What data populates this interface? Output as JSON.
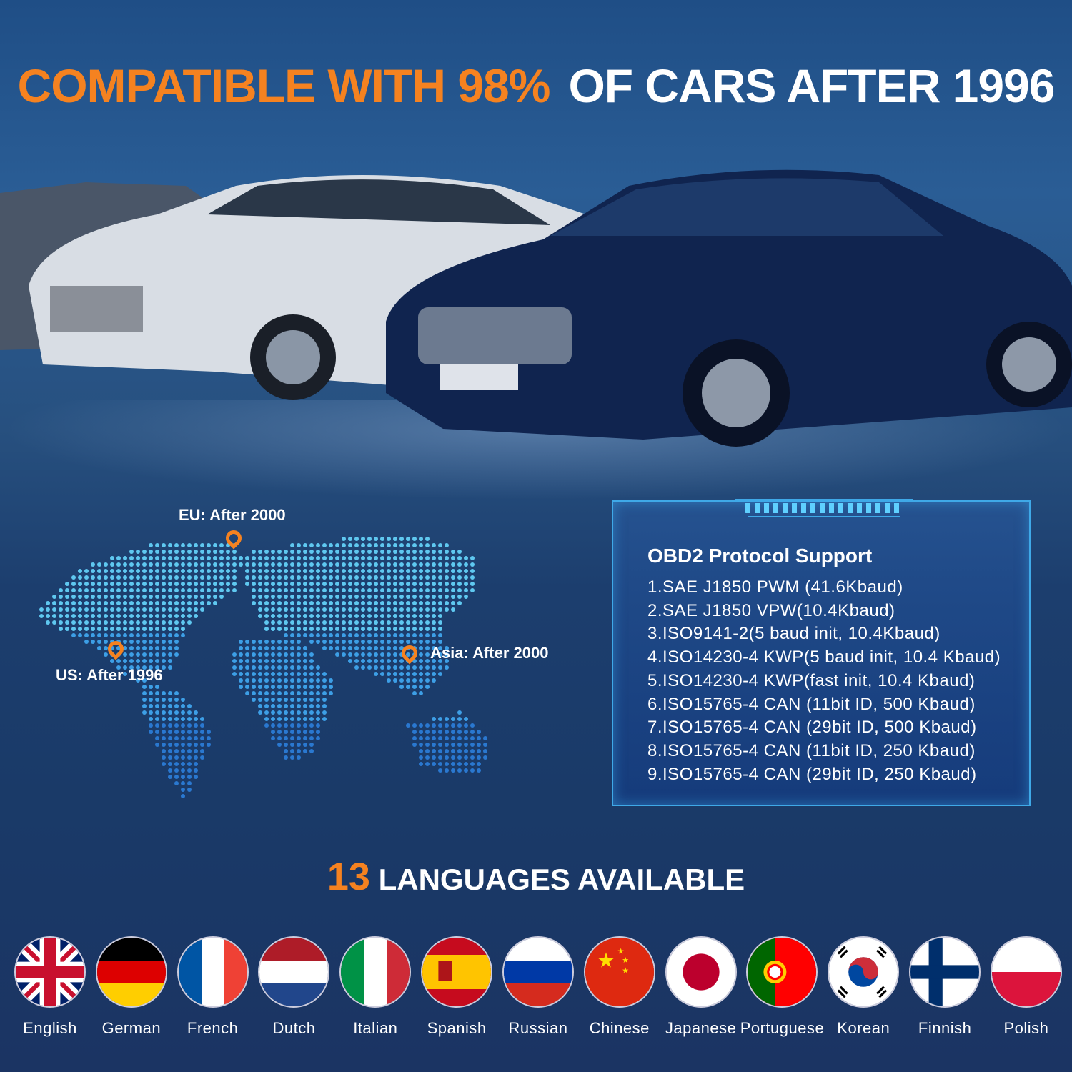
{
  "headline": {
    "orange": "COMPATIBLE WITH 98%",
    "white": "OF CARS AFTER 1996"
  },
  "map": {
    "eu": "EU: After 2000",
    "us": "US: After 1996",
    "asia": "Asia: After 2000"
  },
  "protocols": {
    "title": "OBD2 Protocol Support",
    "items": [
      "1.SAE J1850 PWM (41.6Kbaud)",
      "2.SAE J1850 VPW(10.4Kbaud)",
      "3.ISO9141-2(5 baud init, 10.4Kbaud)",
      "4.ISO14230-4 KWP(5 baud init, 10.4 Kbaud)",
      "5.ISO14230-4 KWP(fast init, 10.4 Kbaud)",
      "6.ISO15765-4 CAN (11bit ID, 500 Kbaud)",
      "7.ISO15765-4 CAN (29bit ID, 500 Kbaud)",
      "8.ISO15765-4 CAN (11bit ID, 250 Kbaud)",
      "9.ISO15765-4 CAN (29bit ID, 250 Kbaud)"
    ]
  },
  "languages": {
    "count": "13",
    "title": "LANGUAGES AVAILABLE",
    "items": [
      {
        "label": "English",
        "flag": "uk"
      },
      {
        "label": "German",
        "flag": "de"
      },
      {
        "label": "French",
        "flag": "fr"
      },
      {
        "label": "Dutch",
        "flag": "nl"
      },
      {
        "label": "Italian",
        "flag": "it"
      },
      {
        "label": "Spanish",
        "flag": "es"
      },
      {
        "label": "Russian",
        "flag": "ru"
      },
      {
        "label": "Chinese",
        "flag": "cn"
      },
      {
        "label": "Japanese",
        "flag": "jp"
      },
      {
        "label": "Portuguese",
        "flag": "pt"
      },
      {
        "label": "Korean",
        "flag": "kr"
      },
      {
        "label": "Finnish",
        "flag": "fi"
      },
      {
        "label": "Polish",
        "flag": "pl"
      }
    ]
  },
  "colors": {
    "accent": "#f58220",
    "panel_border": "#3fa9e8",
    "background": "#1f4e86"
  }
}
